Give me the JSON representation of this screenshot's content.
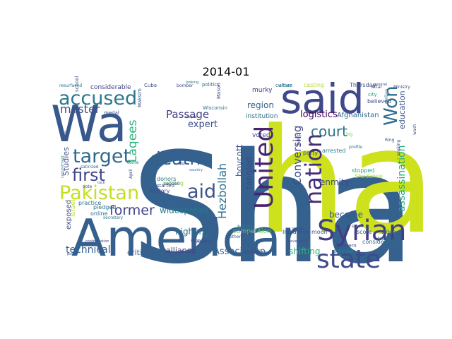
{
  "title": "2014-01",
  "words": [
    {
      "text": "Sha",
      "color": "#35618f",
      "big": true
    },
    {
      "text": "ha",
      "color": "#cde11d"
    },
    {
      "text": "American",
      "color": "#35608d"
    },
    {
      "text": "Wa",
      "color": "#38588c"
    },
    {
      "text": "said",
      "color": "#3f4889"
    },
    {
      "text": "Syrian",
      "color": "#433d84"
    },
    {
      "text": "state",
      "color": "#3e4a89"
    },
    {
      "text": "United",
      "color": "#482374"
    },
    {
      "text": "nation",
      "color": "#472c7a"
    },
    {
      "text": "accused",
      "color": "#2a788e"
    },
    {
      "text": "target",
      "color": "#31688e"
    },
    {
      "text": "Pakistan",
      "color": "#c2df23"
    },
    {
      "text": "aid",
      "color": "#3a548c"
    },
    {
      "text": "death",
      "color": "#35608d"
    },
    {
      "text": "first",
      "color": "#404688"
    },
    {
      "text": "Won",
      "color": "#2f6c8e"
    },
    {
      "text": "court",
      "color": "#2c728e"
    },
    {
      "text": "former",
      "color": "#414487"
    },
    {
      "text": "master",
      "color": "#3e4c8a"
    },
    {
      "text": "Laqees",
      "color": "#2fb47c"
    },
    {
      "text": "Hezbollah",
      "color": "#2d708e"
    },
    {
      "text": "assassination",
      "color": "#25ab82"
    },
    {
      "text": "Conversing",
      "color": "#3f4788"
    },
    {
      "text": "Passage",
      "color": "#424086"
    },
    {
      "text": "technical",
      "color": "#34618d"
    },
    {
      "text": "education",
      "color": "#3b528b"
    },
    {
      "text": "logistics",
      "color": "#440154"
    },
    {
      "text": "expert",
      "color": "#3d4e8a"
    },
    {
      "text": "region",
      "color": "#33638d"
    },
    {
      "text": "Association",
      "color": "#32658e"
    },
    {
      "text": "tangled",
      "color": "#3e4989"
    },
    {
      "text": "enmity",
      "color": "#3e4a89"
    },
    {
      "text": "shifting",
      "color": "#31b57b"
    },
    {
      "text": "boycott",
      "color": "#3b518b"
    },
    {
      "text": "widespread",
      "color": "#2a778e"
    },
    {
      "text": "Studies",
      "color": "#3b528b"
    },
    {
      "text": "higher",
      "color": "#2c718e"
    },
    {
      "text": "alliance",
      "color": "#424086"
    },
    {
      "text": "criticism",
      "color": "#33628d"
    },
    {
      "text": "become",
      "color": "#38598c"
    },
    {
      "text": "exposed",
      "color": "#3e4a89"
    },
    {
      "text": "Afghanistan",
      "color": "#31688e"
    },
    {
      "text": "considerable",
      "color": "#404588"
    },
    {
      "text": "institution",
      "color": "#2c718e"
    },
    {
      "text": "Israel",
      "color": "#b8de29"
    },
    {
      "text": "competition",
      "color": "#75d054"
    },
    {
      "text": "voted",
      "color": "#3f4889"
    },
    {
      "text": "murky",
      "color": "#463480"
    },
    {
      "text": "party",
      "color": "#3b528b"
    },
    {
      "text": "settling",
      "color": "#90d743"
    },
    {
      "text": "history",
      "color": "#3d4d8a"
    },
    {
      "text": "pledged",
      "color": "#2a788e"
    },
    {
      "text": "online",
      "color": "#306a8e"
    },
    {
      "text": "practice",
      "color": "#2d708e"
    },
    {
      "text": "Indian",
      "color": "#3e4a89"
    },
    {
      "text": "moon",
      "color": "#3b528b"
    },
    {
      "text": "score",
      "color": "#38598c"
    },
    {
      "text": "video",
      "color": "#2d718e"
    },
    {
      "text": "considered",
      "color": "#2f6b8e"
    },
    {
      "text": "sectarian",
      "color": "#433e85"
    },
    {
      "text": "suicide",
      "color": "#25838e"
    },
    {
      "text": "Western",
      "color": "#3e4a89"
    },
    {
      "text": "stopped",
      "color": "#20a386"
    },
    {
      "text": "Shedanee",
      "color": "#b5de2b"
    },
    {
      "text": "arrested",
      "color": "#297b8e"
    },
    {
      "text": "casting",
      "color": "#b8de29"
    },
    {
      "text": "Thursday",
      "color": "#3b528b"
    },
    {
      "text": "culture",
      "color": "#2c728e"
    },
    {
      "text": "believed",
      "color": "#3d4d8a"
    },
    {
      "text": "city",
      "color": "#1f9e89"
    },
    {
      "text": "Attar",
      "color": "#3e4a89"
    },
    {
      "text": "Cuba",
      "color": "#3b528b"
    },
    {
      "text": "politics",
      "color": "#31688e"
    },
    {
      "text": "bomber",
      "color": "#3e4a89"
    },
    {
      "text": "resurfaced",
      "color": "#2c728e"
    },
    {
      "text": "school",
      "color": "#3b528b"
    },
    {
      "text": "medal",
      "color": "#3e4a89"
    },
    {
      "text": "donors",
      "color": "#2a788e"
    },
    {
      "text": "started",
      "color": "#3e4a89"
    },
    {
      "text": "Maksim",
      "color": "#3b528b"
    },
    {
      "text": "Wisconsin",
      "color": "#2c728e"
    },
    {
      "text": "Mason",
      "color": "#3e4a89"
    },
    {
      "text": "billion",
      "color": "#2a788e"
    },
    {
      "text": "Po",
      "color": "#3e4a89"
    },
    {
      "text": "whose",
      "color": "#3b528b"
    },
    {
      "text": "list",
      "color": "#2c728e"
    },
    {
      "text": "violence",
      "color": "#3e4a89"
    },
    {
      "text": "others",
      "color": "#3b528b"
    },
    {
      "text": "either",
      "color": "#2a788e"
    },
    {
      "text": "vote",
      "color": "#3e4a89"
    },
    {
      "text": "open",
      "color": "#3b528b"
    },
    {
      "text": "satirized",
      "color": "#2c728e"
    },
    {
      "text": "April",
      "color": "#3e4a89"
    },
    {
      "text": "secretary",
      "color": "#2a788e"
    },
    {
      "text": "small",
      "color": "#3b528b"
    },
    {
      "text": "Ring",
      "color": "#3e4a89"
    },
    {
      "text": "profile",
      "color": "#2c728e"
    },
    {
      "text": "help",
      "color": "#3e4a89"
    },
    {
      "text": "big",
      "color": "#7ad151"
    },
    {
      "text": "remain",
      "color": "#3b528b"
    },
    {
      "text": "civilian",
      "color": "#2a788e"
    },
    {
      "text": "general",
      "color": "#3e4a89"
    },
    {
      "text": "Ministry",
      "color": "#3b528b"
    },
    {
      "text": "looking",
      "color": "#2c728e"
    },
    {
      "text": "couple",
      "color": "#3e4a89"
    },
    {
      "text": "needed",
      "color": "#3b528b"
    },
    {
      "text": "come",
      "color": "#2a788e"
    },
    {
      "text": "world",
      "color": "#3e4a89"
    },
    {
      "text": "developing",
      "color": "#3b528b"
    },
    {
      "text": "foreign",
      "color": "#2c728e"
    },
    {
      "text": "seeking",
      "color": "#3e4a89"
    },
    {
      "text": "wash",
      "color": "#3b528b"
    },
    {
      "text": "commitment",
      "color": "#2a788e"
    },
    {
      "text": "confrontation",
      "color": "#3e4a89"
    },
    {
      "text": "point",
      "color": "#3b528b"
    },
    {
      "text": "country",
      "color": "#2c728e"
    },
    {
      "text": "tuck",
      "color": "#3e4a89"
    },
    {
      "text": "high",
      "color": "#3b528b"
    },
    {
      "text": "penalty",
      "color": "#2a788e"
    },
    {
      "text": "force",
      "color": "#3e4a89"
    }
  ]
}
